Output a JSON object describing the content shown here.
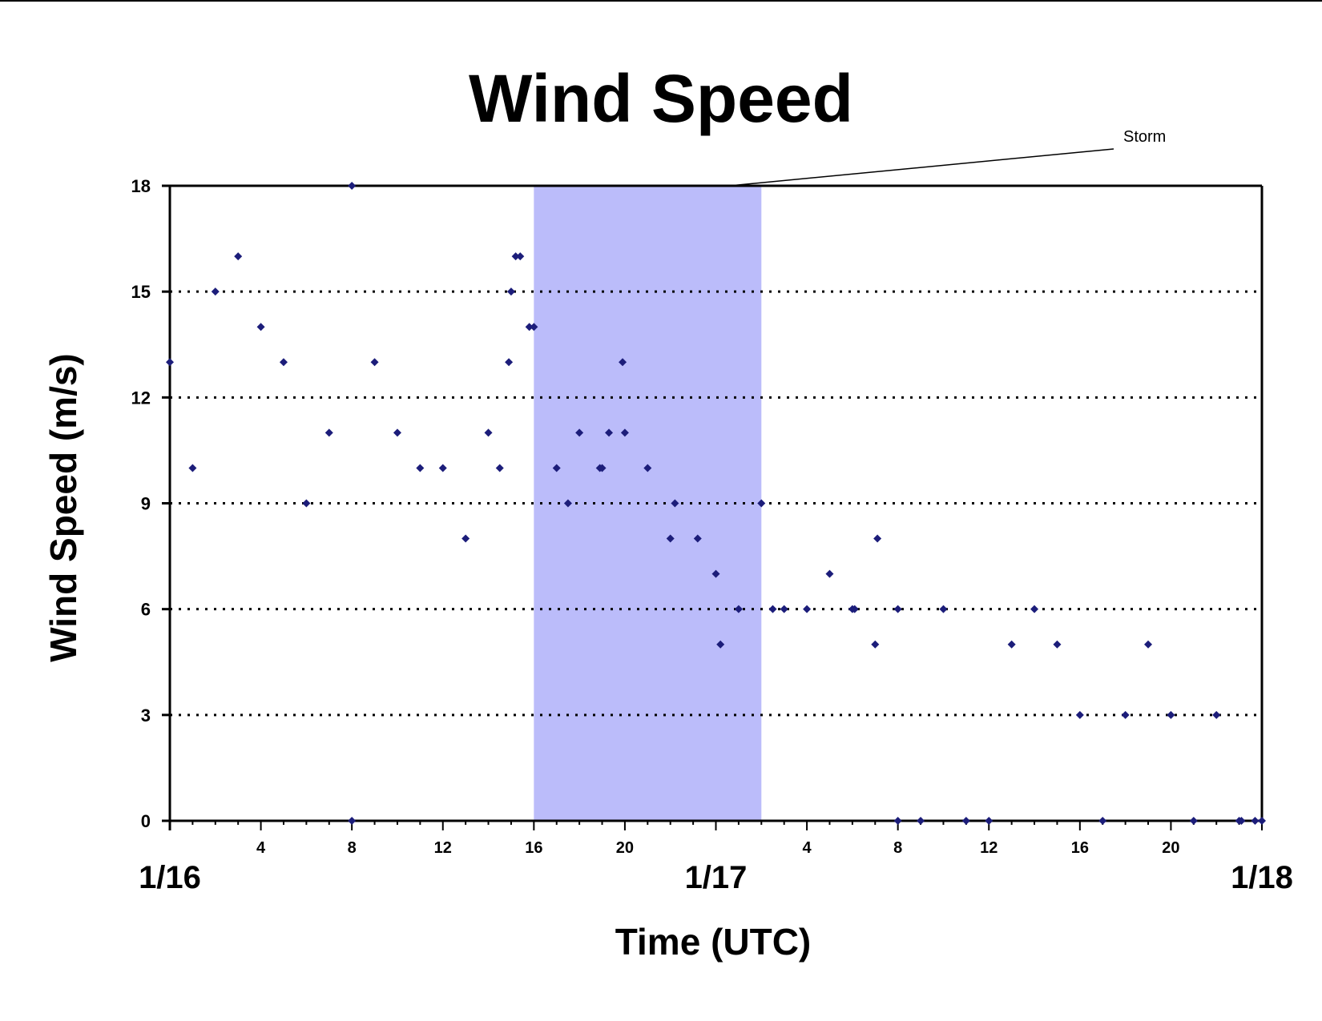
{
  "chart_data": {
    "type": "scatter",
    "title": "Wind Speed",
    "xlabel": "Time (UTC)",
    "ylabel": "Wind Speed (m/s)",
    "x_unit": "hours",
    "xlim": [
      0,
      48
    ],
    "ylim": [
      0,
      18
    ],
    "y_ticks": [
      0,
      3,
      6,
      9,
      12,
      15,
      18
    ],
    "hour_ticks": [
      {
        "x": 4,
        "label": "4"
      },
      {
        "x": 8,
        "label": "8"
      },
      {
        "x": 12,
        "label": "12"
      },
      {
        "x": 16,
        "label": "16"
      },
      {
        "x": 20,
        "label": "20"
      },
      {
        "x": 28,
        "label": "4"
      },
      {
        "x": 32,
        "label": "8"
      },
      {
        "x": 36,
        "label": "12"
      },
      {
        "x": 40,
        "label": "16"
      },
      {
        "x": 44,
        "label": "20"
      }
    ],
    "date_ticks": [
      {
        "x": 0,
        "label": "1/16"
      },
      {
        "x": 24,
        "label": "1/17"
      },
      {
        "x": 48,
        "label": "1/18"
      }
    ],
    "grid": "horizontal dotted",
    "storm_band": {
      "start": 16,
      "end": 26,
      "label": "Storm",
      "color": "#bbbcfa"
    },
    "marker_color": "#1c1d7a",
    "series": [
      {
        "points": [
          [
            0,
            13
          ],
          [
            1,
            10
          ],
          [
            2,
            15
          ],
          [
            3,
            16
          ],
          [
            4,
            14
          ],
          [
            5,
            13
          ],
          [
            6,
            9
          ],
          [
            7,
            11
          ],
          [
            8,
            18
          ],
          [
            8,
            0
          ],
          [
            9,
            13
          ],
          [
            10,
            11
          ],
          [
            11,
            10
          ],
          [
            12,
            10
          ],
          [
            13,
            8
          ],
          [
            14,
            11
          ],
          [
            14.5,
            10
          ],
          [
            14.9,
            13
          ],
          [
            15,
            15
          ],
          [
            15.2,
            16
          ],
          [
            15.4,
            16
          ],
          [
            15.8,
            14
          ],
          [
            16,
            14
          ],
          [
            17,
            10
          ],
          [
            17.5,
            9
          ],
          [
            18,
            11
          ],
          [
            18.9,
            10
          ],
          [
            19,
            10
          ],
          [
            19.3,
            11
          ],
          [
            19.9,
            13
          ],
          [
            20,
            11
          ],
          [
            21,
            10
          ],
          [
            22,
            8
          ],
          [
            22.2,
            9
          ],
          [
            23.2,
            8
          ],
          [
            24,
            7
          ],
          [
            24.2,
            5
          ],
          [
            25,
            6
          ],
          [
            26,
            9
          ],
          [
            26.5,
            6
          ],
          [
            27,
            6
          ],
          [
            28,
            6
          ],
          [
            29,
            7
          ],
          [
            30,
            6
          ],
          [
            30.1,
            6
          ],
          [
            31,
            5
          ],
          [
            31.1,
            8
          ],
          [
            32,
            6
          ],
          [
            32,
            0
          ],
          [
            33,
            0
          ],
          [
            34,
            6
          ],
          [
            35,
            0
          ],
          [
            36,
            0
          ],
          [
            37,
            5
          ],
          [
            38,
            6
          ],
          [
            39,
            5
          ],
          [
            40,
            3
          ],
          [
            41,
            0
          ],
          [
            42,
            3
          ],
          [
            43,
            5
          ],
          [
            44,
            3
          ],
          [
            45,
            0
          ],
          [
            46,
            3
          ],
          [
            47,
            0
          ],
          [
            47.1,
            0
          ],
          [
            47.7,
            0
          ],
          [
            48,
            0
          ]
        ]
      }
    ]
  }
}
